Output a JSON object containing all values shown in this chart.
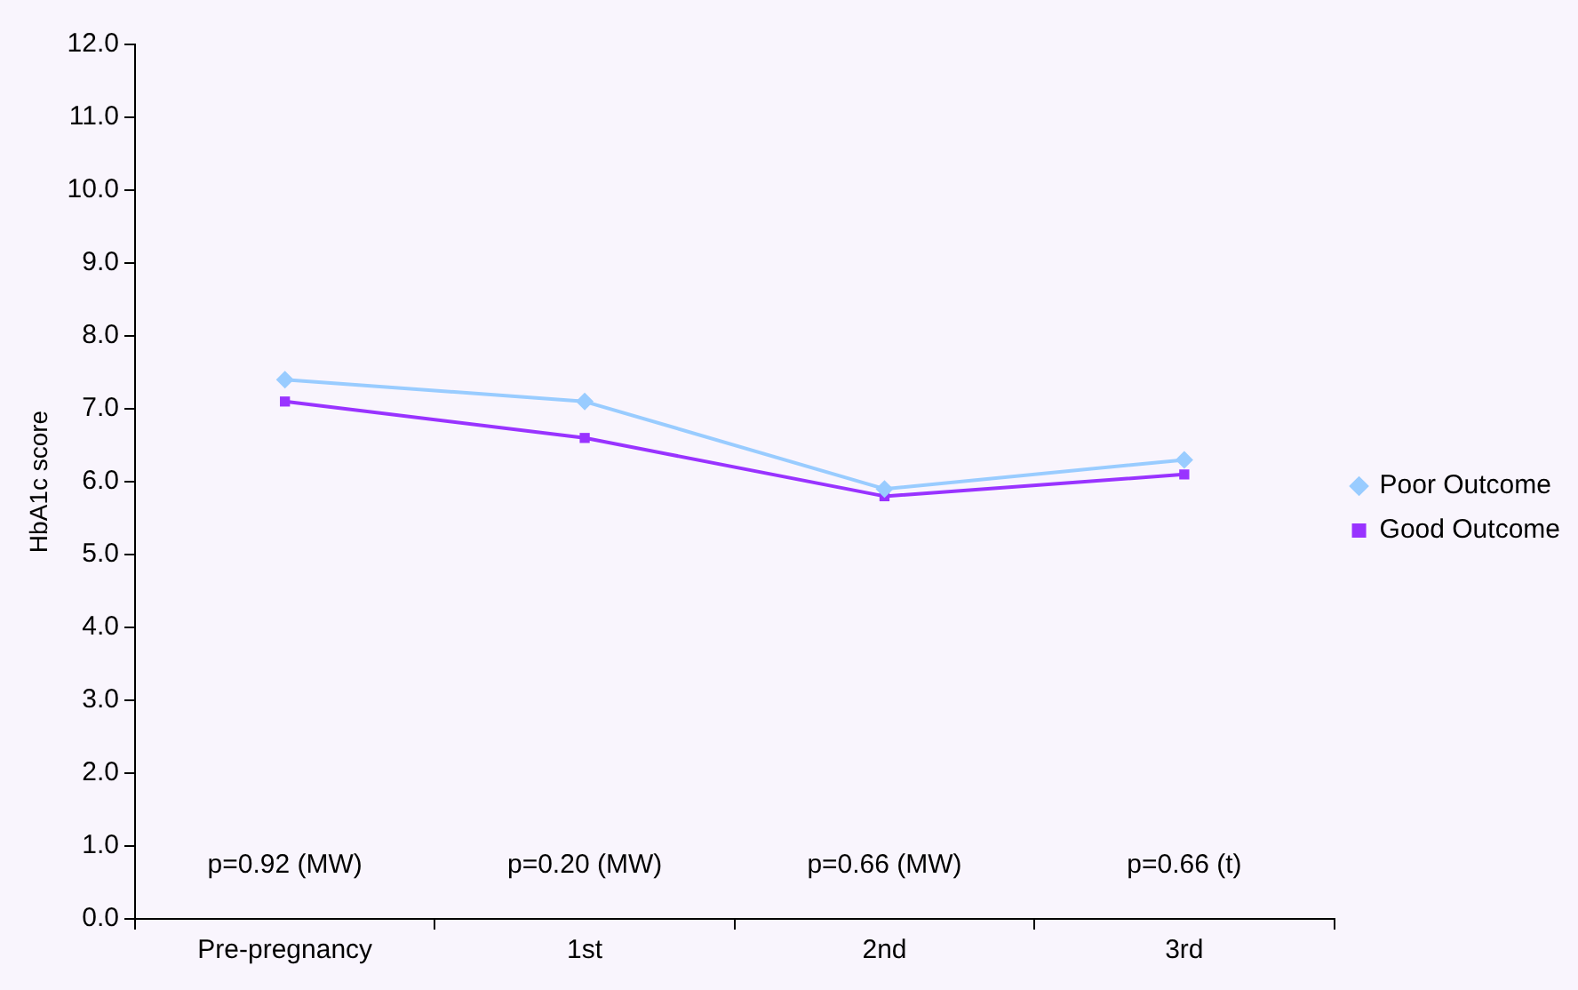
{
  "chart_data": {
    "type": "line",
    "ylabel": "HbA1c score",
    "categories": [
      "Pre-pregnancy",
      "1st",
      "2nd",
      "3rd"
    ],
    "series": [
      {
        "name": "Poor Outcome",
        "color": "#99ccff",
        "marker": "diamond",
        "values": [
          7.4,
          7.1,
          5.9,
          6.3
        ]
      },
      {
        "name": "Good Outcome",
        "color": "#9933ff",
        "marker": "square",
        "values": [
          7.1,
          6.6,
          5.8,
          6.1
        ]
      }
    ],
    "ylim": [
      0,
      12
    ],
    "yticks": [
      {
        "value": 0,
        "label": "0.0"
      },
      {
        "value": 1,
        "label": "1.0"
      },
      {
        "value": 2,
        "label": "2.0"
      },
      {
        "value": 3,
        "label": "3.0"
      },
      {
        "value": 4,
        "label": "4.0"
      },
      {
        "value": 5,
        "label": "5.0"
      },
      {
        "value": 6,
        "label": "6.0"
      },
      {
        "value": 7,
        "label": "7.0"
      },
      {
        "value": 8,
        "label": "8.0"
      },
      {
        "value": 9,
        "label": "9.0"
      },
      {
        "value": 10,
        "label": "10.0"
      },
      {
        "value": 11,
        "label": "11.0"
      },
      {
        "value": 12,
        "label": "12.0"
      }
    ],
    "annotations": [
      "p=0.92 (MW)",
      "p=0.20 (MW)",
      "p=0.66 (MW)",
      "p=0.66 (t)"
    ],
    "grid": false,
    "legend": "right",
    "line_style": "solid"
  }
}
